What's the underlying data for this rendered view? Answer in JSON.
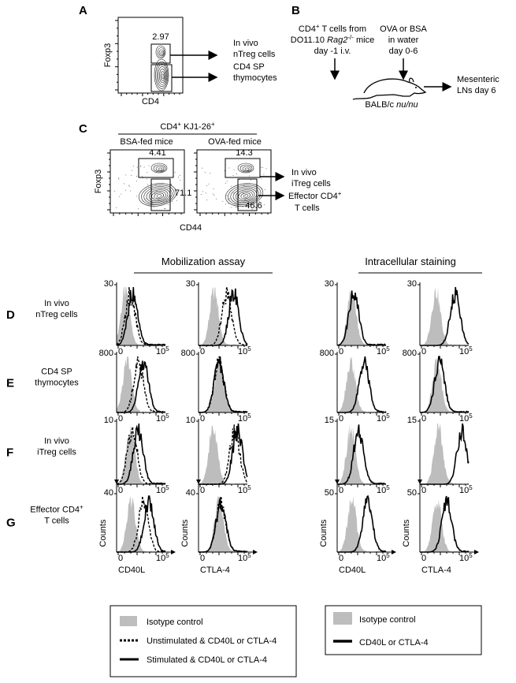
{
  "panel_a": {
    "letter": "A",
    "y_label": "Foxp3",
    "x_label": "CD4",
    "gate_value": "2.97",
    "targets": [
      [
        "In vivo",
        "nTreg cells"
      ],
      [
        "CD4 SP",
        "thymocytes"
      ]
    ]
  },
  "panel_b": {
    "letter": "B",
    "donor": {
      "l1": {
        "main": "CD4",
        "sup": "+",
        "rest": " T cells from"
      },
      "l2": {
        "main": "DO11.10 ",
        "italic": "Rag2",
        "sup": "-/-",
        "rest": " mice"
      },
      "l3": "day -1 i.v."
    },
    "feed": [
      "OVA or BSA",
      "in water",
      "day 0-6"
    ],
    "host": {
      "main": "BALB/c ",
      "italic": "nu/nu"
    },
    "readout": [
      "Mesenteric",
      "LNs day 6"
    ]
  },
  "panel_c": {
    "letter": "C",
    "header": {
      "a": "CD4",
      "a_sup": "+",
      "b": " KJ1-26",
      "b_sup": "+"
    },
    "groups": [
      {
        "name": "BSA-fed mice",
        "top": "4.41",
        "right": "71.1"
      },
      {
        "name": "OVA-fed mice",
        "top": "14.3",
        "right": "46.6"
      }
    ],
    "y_label": "Foxp3",
    "x_label": "CD44",
    "target_itreg": [
      "In vivo",
      "iTreg cells"
    ],
    "target_effector": {
      "main": "Effector CD4",
      "sup": "+",
      "line2": "T cells"
    }
  },
  "histograms": {
    "section_titles": [
      "Mobilization assay",
      "Intracellular staining"
    ],
    "rows": [
      {
        "letter": "D",
        "label": [
          "In vivo",
          "nTreg cells"
        ],
        "ymax": [
          "30",
          "30",
          "30",
          "30"
        ]
      },
      {
        "letter": "E",
        "label": [
          "CD4 SP",
          "thymocytes"
        ],
        "ymax": [
          "800",
          "800",
          "800",
          "800"
        ]
      },
      {
        "letter": "F",
        "label": [
          "In vivo",
          "iTreg cells"
        ],
        "ymax": [
          "10",
          "10",
          "15",
          "15"
        ]
      },
      {
        "letter": "G",
        "label": {
          "main": "Effector CD4",
          "sup": "+",
          "line2": "T cells"
        },
        "ymax": [
          "40",
          "40",
          "50",
          "50"
        ]
      }
    ],
    "x_tick_min": "0",
    "x_tick_max": {
      "base": "10",
      "exp": "5"
    },
    "y_axis_label": "Counts",
    "x_axis_labels": [
      "CD40L",
      "CTLA-4",
      "CD40L",
      "CTLA-4"
    ]
  },
  "legends": [
    [
      "Isotype control",
      "Unstimulated & CD40L or CTLA-4",
      "Stimulated & CD40L or CTLA-4"
    ],
    [
      "Isotype control",
      "CD40L or CTLA-4"
    ]
  ]
}
